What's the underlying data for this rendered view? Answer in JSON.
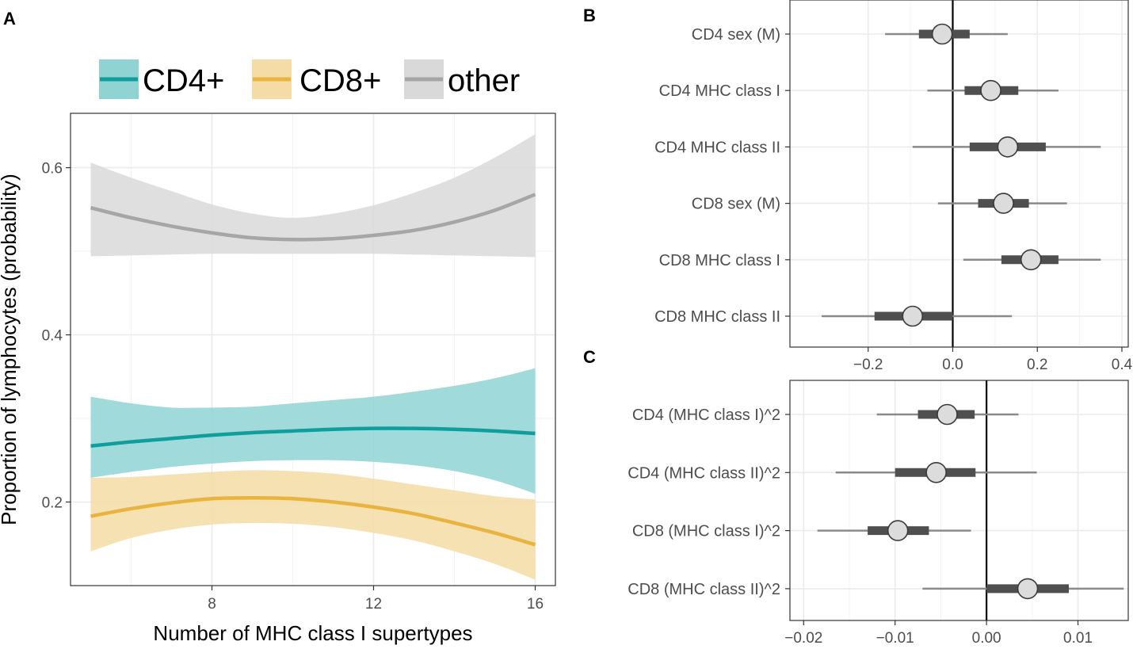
{
  "chart_data": [
    {
      "panel": "A",
      "type": "line",
      "xlabel": "Number of MHC class I supertypes",
      "ylabel": "Proportion of lymphocytes (probability)",
      "xlim": [
        4.5,
        16.5
      ],
      "ylim": [
        0.1,
        0.665
      ],
      "xticks": [
        8,
        12,
        16
      ],
      "xtick_labels": [
        "8",
        "12",
        "16"
      ],
      "yticks": [
        0.2,
        0.4,
        0.6
      ],
      "ytick_labels": [
        "0.2",
        "0.4",
        "0.6"
      ],
      "legend_position": "top",
      "x": [
        5,
        6,
        7,
        8,
        9,
        10,
        11,
        12,
        13,
        14,
        15,
        16
      ],
      "series": [
        {
          "name": "other",
          "legend_label": "other",
          "line_color": "#a6a6a6",
          "band_color": "#d9d9d9",
          "values": [
            0.552,
            0.54,
            0.53,
            0.522,
            0.516,
            0.514,
            0.515,
            0.519,
            0.525,
            0.535,
            0.549,
            0.568
          ],
          "lower": [
            0.494,
            0.495,
            0.496,
            0.497,
            0.497,
            0.497,
            0.497,
            0.497,
            0.496,
            0.495,
            0.494,
            0.493
          ],
          "upper": [
            0.606,
            0.588,
            0.572,
            0.556,
            0.545,
            0.54,
            0.545,
            0.555,
            0.57,
            0.588,
            0.612,
            0.64
          ]
        },
        {
          "name": "CD4+",
          "legend_label": "CD4+",
          "line_color": "#0f9e9b",
          "band_color": "#8fd4d3",
          "values": [
            0.267,
            0.272,
            0.276,
            0.28,
            0.283,
            0.285,
            0.287,
            0.288,
            0.288,
            0.287,
            0.285,
            0.282
          ],
          "lower": [
            0.229,
            0.236,
            0.242,
            0.246,
            0.249,
            0.25,
            0.25,
            0.248,
            0.244,
            0.237,
            0.226,
            0.21
          ],
          "upper": [
            0.326,
            0.318,
            0.313,
            0.313,
            0.314,
            0.318,
            0.322,
            0.326,
            0.332,
            0.339,
            0.348,
            0.36
          ]
        },
        {
          "name": "CD8+",
          "legend_label": "CD8+",
          "line_color": "#e9b33f",
          "band_color": "#f5dca6",
          "values": [
            0.183,
            0.192,
            0.199,
            0.204,
            0.205,
            0.204,
            0.2,
            0.194,
            0.186,
            0.175,
            0.163,
            0.149
          ],
          "lower": [
            0.141,
            0.157,
            0.167,
            0.173,
            0.175,
            0.174,
            0.17,
            0.163,
            0.154,
            0.141,
            0.126,
            0.107
          ],
          "upper": [
            0.229,
            0.23,
            0.233,
            0.236,
            0.238,
            0.237,
            0.234,
            0.228,
            0.221,
            0.214,
            0.207,
            0.203
          ]
        }
      ]
    },
    {
      "panel": "B",
      "type": "scatter",
      "subtype": "coefficient_interval",
      "xlim": [
        -0.385,
        0.415
      ],
      "xticks": [
        -0.2,
        0.0,
        0.2,
        0.4
      ],
      "xtick_labels": [
        "−0.2",
        "0.0",
        "0.2",
        "0.4"
      ],
      "reference_line": 0,
      "categories": [
        "CD4 sex (M)",
        "CD4 MHC class I",
        "CD4 MHC class II",
        "CD8 sex (M)",
        "CD8 MHC class I",
        "CD8 MHC class II"
      ],
      "estimate": [
        -0.025,
        0.09,
        0.13,
        0.12,
        0.185,
        -0.095
      ],
      "inner_low": [
        -0.08,
        0.028,
        0.04,
        0.06,
        0.115,
        -0.185
      ],
      "inner_high": [
        0.04,
        0.155,
        0.22,
        0.18,
        0.25,
        0.0
      ],
      "outer_low": [
        -0.16,
        -0.06,
        -0.095,
        -0.035,
        0.025,
        -0.31
      ],
      "outer_high": [
        0.13,
        0.25,
        0.35,
        0.27,
        0.35,
        0.14
      ]
    },
    {
      "panel": "C",
      "type": "scatter",
      "subtype": "coefficient_interval",
      "xlim": [
        -0.0215,
        0.0155
      ],
      "xticks": [
        -0.02,
        -0.01,
        0.0,
        0.01
      ],
      "xtick_labels": [
        "−0.02",
        "−0.01",
        "0.00",
        "0.01"
      ],
      "reference_line": 0,
      "categories": [
        "CD4 (MHC class I)^2",
        "CD4 (MHC class II)^2",
        "CD8 (MHC class I)^2",
        "CD8 (MHC class II)^2"
      ],
      "estimate": [
        -0.0043,
        -0.0055,
        -0.0097,
        0.0045
      ],
      "inner_low": [
        -0.0075,
        -0.01,
        -0.013,
        0.0
      ],
      "inner_high": [
        -0.0013,
        -0.0012,
        -0.0063,
        0.009
      ],
      "outer_low": [
        -0.012,
        -0.0165,
        -0.0185,
        -0.007
      ],
      "outer_high": [
        0.0035,
        0.0055,
        -0.0017,
        0.015
      ]
    }
  ],
  "panel_labels": {
    "a": "A",
    "b": "B",
    "c": "C"
  },
  "colors": {
    "interval": "#4f4f4f",
    "outer_interval": "#8a8a8a",
    "point_fill": "#dcdcdc",
    "point_stroke": "#3a3a3a",
    "grid": "#ebebeb"
  }
}
